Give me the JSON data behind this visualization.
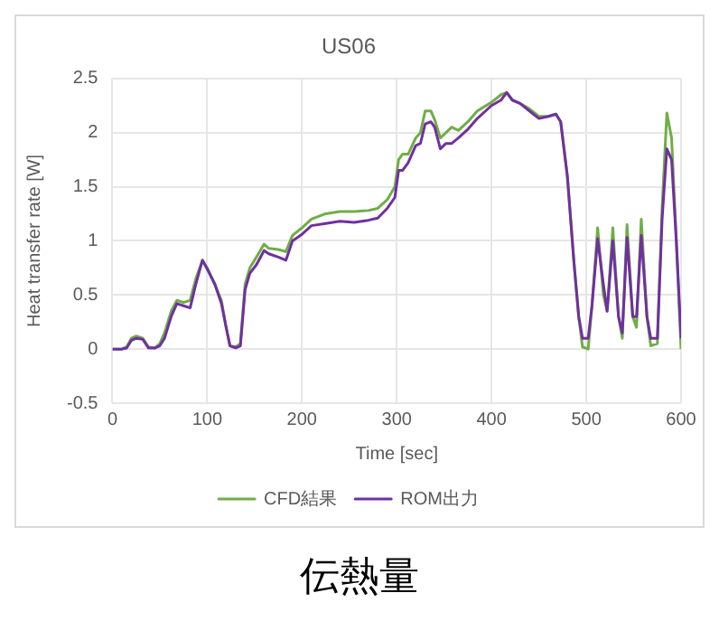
{
  "chart_data": {
    "type": "line",
    "title": "US06",
    "xlabel": "Time [sec]",
    "ylabel": "Heat transfer rate [W]",
    "annotations": [
      "伝熱量"
    ],
    "x": [
      0,
      10,
      15,
      20,
      25,
      32,
      38,
      45,
      50,
      55,
      62,
      68,
      75,
      82,
      88,
      95,
      100,
      108,
      115,
      120,
      124,
      130,
      135,
      140,
      145,
      152,
      160,
      165,
      175,
      183,
      190,
      200,
      210,
      225,
      240,
      255,
      270,
      280,
      290,
      298,
      302,
      306,
      312,
      320,
      325,
      330,
      336,
      340,
      346,
      352,
      358,
      365,
      375,
      385,
      400,
      410,
      416,
      422,
      430,
      440,
      450,
      460,
      468,
      473,
      480,
      487,
      492,
      496,
      502,
      506,
      512,
      518,
      522,
      528,
      534,
      538,
      543,
      549,
      553,
      558,
      564,
      568,
      575,
      580,
      585,
      590,
      595,
      600
    ],
    "series": [
      {
        "name": "CFD結果",
        "color": "#70ad47",
        "values": [
          0,
          0,
          0.02,
          0.1,
          0.12,
          0.1,
          0.02,
          0.01,
          0.05,
          0.15,
          0.35,
          0.45,
          0.43,
          0.45,
          0.65,
          0.82,
          0.75,
          0.6,
          0.45,
          0.2,
          0.03,
          0.02,
          0.05,
          0.6,
          0.75,
          0.85,
          0.97,
          0.93,
          0.92,
          0.9,
          1.05,
          1.12,
          1.2,
          1.25,
          1.27,
          1.27,
          1.28,
          1.3,
          1.38,
          1.5,
          1.75,
          1.8,
          1.8,
          1.95,
          2,
          2.2,
          2.2,
          2.12,
          1.95,
          2,
          2.05,
          2.02,
          2.1,
          2.2,
          2.28,
          2.35,
          2.37,
          2.3,
          2.27,
          2.22,
          2.15,
          2.15,
          2.17,
          2.1,
          1.6,
          0.8,
          0.3,
          0.02,
          0,
          0.4,
          1.12,
          0.5,
          0.35,
          1.12,
          0.3,
          0.1,
          1.15,
          0.3,
          0.2,
          1.2,
          0.3,
          0.03,
          0.05,
          1.3,
          2.18,
          1.95,
          1,
          0
        ]
      },
      {
        "name": "ROM出力",
        "color": "#7030a0",
        "values": [
          0,
          0,
          0.01,
          0.08,
          0.1,
          0.09,
          0.01,
          0.01,
          0.03,
          0.1,
          0.3,
          0.42,
          0.4,
          0.38,
          0.6,
          0.82,
          0.74,
          0.6,
          0.42,
          0.2,
          0.03,
          0.01,
          0.03,
          0.55,
          0.7,
          0.78,
          0.91,
          0.88,
          0.85,
          0.82,
          1,
          1.06,
          1.14,
          1.16,
          1.18,
          1.17,
          1.19,
          1.21,
          1.3,
          1.4,
          1.65,
          1.65,
          1.72,
          1.88,
          1.9,
          2.08,
          2.1,
          2.05,
          1.85,
          1.9,
          1.9,
          1.95,
          2.03,
          2.13,
          2.25,
          2.3,
          2.37,
          2.3,
          2.27,
          2.2,
          2.13,
          2.15,
          2.17,
          2.1,
          1.6,
          0.8,
          0.3,
          0.1,
          0.1,
          0.4,
          1.02,
          0.6,
          0.35,
          1,
          0.3,
          0.15,
          1.03,
          0.3,
          0.3,
          1.05,
          0.3,
          0.1,
          0.1,
          1.2,
          1.85,
          1.75,
          1,
          0.1
        ]
      }
    ],
    "xlim": [
      0,
      600
    ],
    "xticks": [
      0,
      100,
      200,
      300,
      400,
      500,
      600
    ],
    "ylim": [
      -0.5,
      2.5
    ],
    "yticks": [
      -0.5,
      0,
      0.5,
      1,
      1.5,
      2,
      2.5
    ],
    "grid": true,
    "legend": "bottom",
    "marker": "none",
    "line_style": "solid"
  }
}
